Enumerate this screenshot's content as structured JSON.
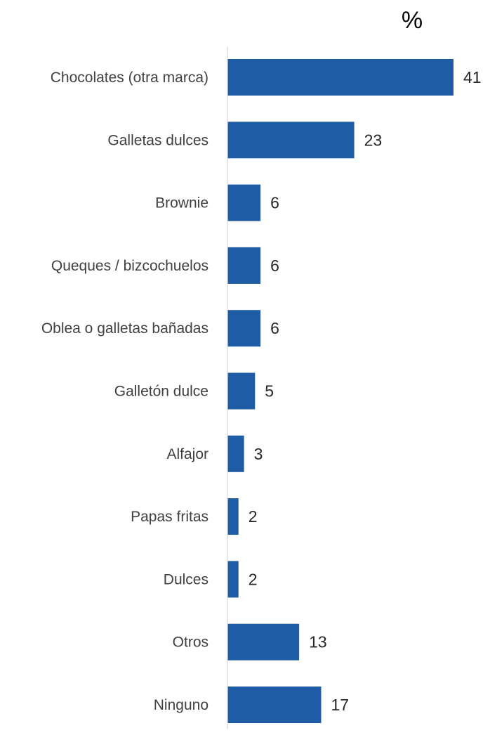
{
  "chart_data": {
    "type": "bar",
    "orientation": "horizontal",
    "unit_label": "%",
    "categories": [
      "Chocolates (otra marca)",
      "Galletas dulces",
      "Brownie",
      "Queques / bizcochuelos",
      "Oblea o galletas bañadas",
      "Galletón dulce",
      "Alfajor",
      "Papas fritas",
      "Dulces",
      "Otros",
      "Ninguno"
    ],
    "values": [
      41,
      23,
      6,
      6,
      6,
      5,
      3,
      2,
      2,
      13,
      17
    ],
    "xlim": [
      0,
      41
    ],
    "grid": false,
    "legend": "none",
    "bar_color": "#1F5CA6",
    "axis_color": "#D9D9D9"
  }
}
